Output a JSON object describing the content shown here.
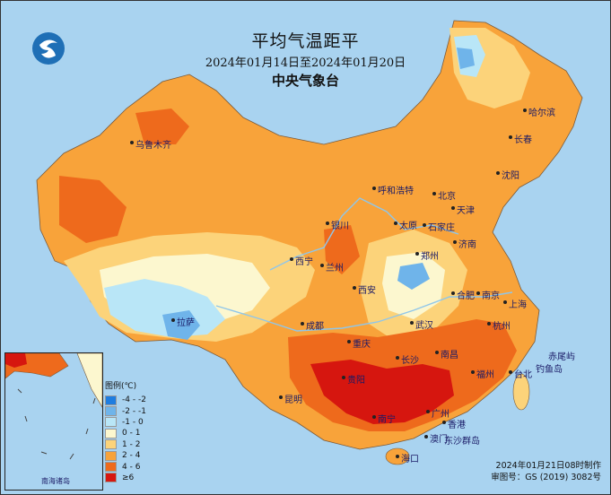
{
  "title": "平均气温距平",
  "date_range": "2024年01月14日至2024年01月20日",
  "organization": "中央气象台",
  "legend": {
    "title": "图例(℃)",
    "items": [
      {
        "label": "-4 - -2",
        "color": "#1e7de0"
      },
      {
        "label": "-2 - -1",
        "color": "#6fb4ea"
      },
      {
        "label": "-1 - 0",
        "color": "#b9e6f7"
      },
      {
        "label": "0 - 1",
        "color": "#fcf7cf"
      },
      {
        "label": "1 - 2",
        "color": "#fcd37a"
      },
      {
        "label": "2 - 4",
        "color": "#f8a33a"
      },
      {
        "label": "4 - 6",
        "color": "#ee6a1c"
      },
      {
        "label": "≥6",
        "color": "#d6160f"
      }
    ]
  },
  "cities": [
    {
      "name": "哈尔滨"
    },
    {
      "name": "长春"
    },
    {
      "name": "沈阳"
    },
    {
      "name": "乌鲁木齐"
    },
    {
      "name": "呼和浩特"
    },
    {
      "name": "北京"
    },
    {
      "name": "天津"
    },
    {
      "name": "银川"
    },
    {
      "name": "太原"
    },
    {
      "name": "石家庄"
    },
    {
      "name": "济南"
    },
    {
      "name": "西宁"
    },
    {
      "name": "兰州"
    },
    {
      "name": "郑州"
    },
    {
      "name": "西安"
    },
    {
      "name": "合肥"
    },
    {
      "name": "南京"
    },
    {
      "name": "上海"
    },
    {
      "name": "拉萨"
    },
    {
      "name": "成都"
    },
    {
      "name": "武汉"
    },
    {
      "name": "杭州"
    },
    {
      "name": "重庆"
    },
    {
      "name": "长沙"
    },
    {
      "name": "南昌"
    },
    {
      "name": "贵阳"
    },
    {
      "name": "福州"
    },
    {
      "name": "台北"
    },
    {
      "name": "昆明"
    },
    {
      "name": "南宁"
    },
    {
      "name": "广州"
    },
    {
      "name": "香港"
    },
    {
      "name": "澳门"
    },
    {
      "name": "海口"
    }
  ],
  "islands": [
    "赤尾屿",
    "钓鱼岛",
    "东沙群岛"
  ],
  "inset_label": "南海诸岛",
  "footer": {
    "made": "2024年01月21日08时制作",
    "approval": "审图号：GS (2019) 3082号"
  }
}
